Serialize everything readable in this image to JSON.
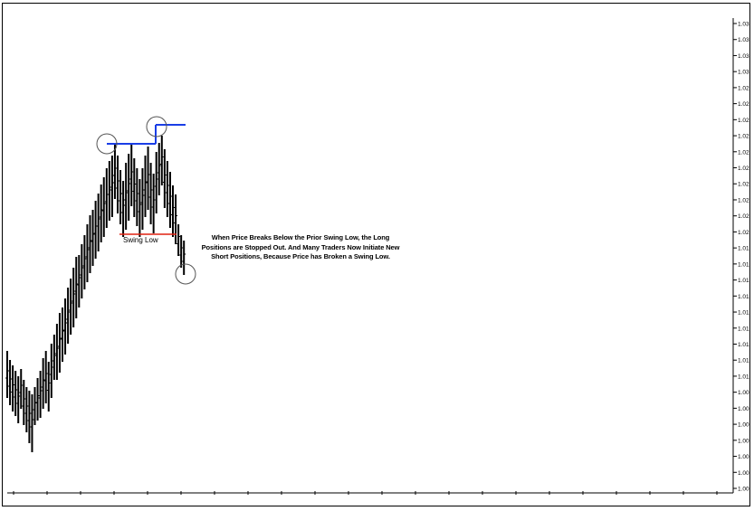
{
  "chart_data": {
    "type": "bar",
    "style": "ohlc-price-bars",
    "annotations": {
      "swing_low_label": "Swing Low",
      "explanation": "When Price Breaks Below the Prior Swing Low, the Long Positions are Stopped Out. And Many Traders Now Initiate New Short Positions, Because Price has Broken a Swing Low."
    },
    "colors": {
      "bars": "#000000",
      "resistance_line": "#1a3ee6",
      "swing_low_line": "#e02010",
      "circles": "#555555"
    },
    "y_tick_labels": [
      "1.03",
      "1.03",
      "1.03",
      "1.03",
      "1.02",
      "1.02",
      "1.02",
      "1.02",
      "1.02",
      "1.02",
      "1.02",
      "1.02",
      "1.02",
      "1.02",
      "1.01",
      "1.01",
      "1.01",
      "1.01",
      "1.01",
      "1.01",
      "1.01",
      "1.01",
      "1.01",
      "1.00",
      "1.00",
      "1.00",
      "1.00",
      "1.00",
      "1.00",
      "1.00"
    ],
    "bars": [
      [
        388,
        440
      ],
      [
        398,
        448
      ],
      [
        404,
        455
      ],
      [
        410,
        460
      ],
      [
        416,
        468
      ],
      [
        408,
        452
      ],
      [
        420,
        470
      ],
      [
        428,
        478
      ],
      [
        432,
        490
      ],
      [
        436,
        500
      ],
      [
        428,
        470
      ],
      [
        418,
        465
      ],
      [
        410,
        462
      ],
      [
        396,
        452
      ],
      [
        388,
        446
      ],
      [
        400,
        455
      ],
      [
        380,
        440
      ],
      [
        370,
        420
      ],
      [
        358,
        420
      ],
      [
        346,
        412
      ],
      [
        340,
        400
      ],
      [
        330,
        392
      ],
      [
        318,
        380
      ],
      [
        308,
        370
      ],
      [
        296,
        362
      ],
      [
        284,
        352
      ],
      [
        282,
        340
      ],
      [
        270,
        330
      ],
      [
        260,
        320
      ],
      [
        248,
        312
      ],
      [
        238,
        302
      ],
      [
        232,
        294
      ],
      [
        222,
        286
      ],
      [
        214,
        278
      ],
      [
        204,
        268
      ],
      [
        196,
        262
      ],
      [
        186,
        252
      ],
      [
        178,
        244
      ],
      [
        172,
        240
      ],
      [
        160,
        220
      ],
      [
        172,
        236
      ],
      [
        188,
        248
      ],
      [
        200,
        262
      ],
      [
        180,
        254
      ],
      [
        170,
        244
      ],
      [
        160,
        228
      ],
      [
        175,
        240
      ],
      [
        186,
        250
      ],
      [
        198,
        262
      ],
      [
        186,
        254
      ],
      [
        172,
        240
      ],
      [
        162,
        232
      ],
      [
        180,
        248
      ],
      [
        192,
        258
      ],
      [
        168,
        236
      ],
      [
        158,
        216
      ],
      [
        150,
        205
      ],
      [
        165,
        230
      ],
      [
        178,
        240
      ],
      [
        190,
        252
      ],
      [
        205,
        262
      ],
      [
        215,
        270
      ],
      [
        248,
        283
      ],
      [
        260,
        296
      ],
      [
        266,
        304
      ]
    ],
    "swing_low_level_y": 259,
    "resistance_levels": [
      {
        "y": 159,
        "from": 118,
        "to": 172
      },
      {
        "y": 138,
        "from": 172,
        "to": 205
      }
    ]
  }
}
